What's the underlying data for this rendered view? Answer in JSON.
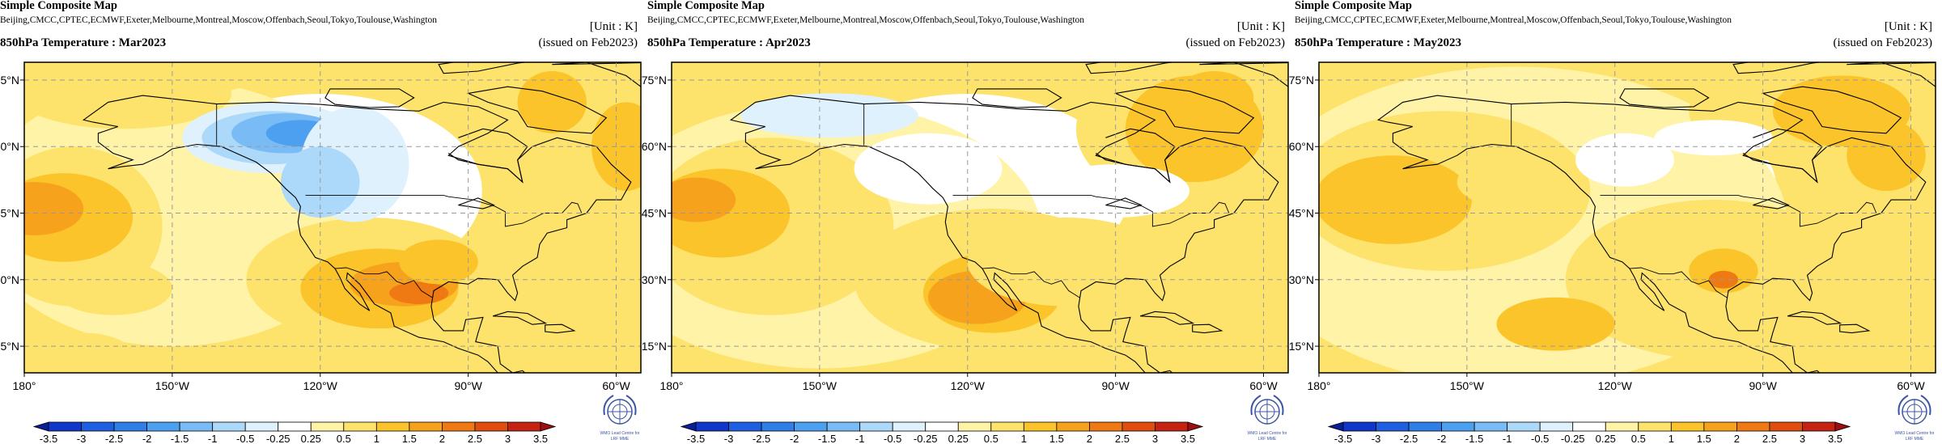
{
  "header": {
    "title": "Simple Composite Map",
    "centers": "Beijing,CMCC,CPTEC,ECMWF,Exeter,Melbourne,Montreal,Moscow,Offenbach,Seoul,Tokyo,Toulouse,Washington",
    "unit": "[Unit : K]",
    "issued": "(issued on Feb2023)"
  },
  "panels": [
    {
      "title": "850hPa Temperature : Mar2023",
      "month": "Mar2023"
    },
    {
      "title": "850hPa Temperature : Apr2023",
      "month": "Apr2023"
    },
    {
      "title": "850hPa Temperature : May2023",
      "month": "May2023"
    }
  ],
  "axes": {
    "lat_labels": [
      "75°N",
      "60°N",
      "45°N",
      "30°N",
      "15°N"
    ],
    "lon_labels": [
      "180°",
      "150°W",
      "120°W",
      "90°W",
      "60°W"
    ]
  },
  "legend": {
    "labels": [
      "-3.5",
      "-3",
      "-2.5",
      "-2",
      "-1.5",
      "-1",
      "-0.5",
      "-0.25",
      "0.25",
      "0.5",
      "1",
      "1.5",
      "2",
      "2.5",
      "3",
      "3.5"
    ],
    "colors": [
      "#0a1e99",
      "#1037c8",
      "#1e5ee0",
      "#2f7fe8",
      "#4d9ff0",
      "#79bcf5",
      "#acd8fa",
      "#dff1fd",
      "#ffffff",
      "#fff3a8",
      "#fde36b",
      "#fbc42a",
      "#f6a21c",
      "#ef7a13",
      "#e04d0e",
      "#c52311",
      "#9c0e12"
    ]
  },
  "logo": {
    "name": "wmo-emblem-icon",
    "text_line1": "WMO Lead Centre for",
    "text_line2": "LRF MME"
  },
  "colors": {
    "land_line": "#000000",
    "grid": "#9a9a9a"
  }
}
